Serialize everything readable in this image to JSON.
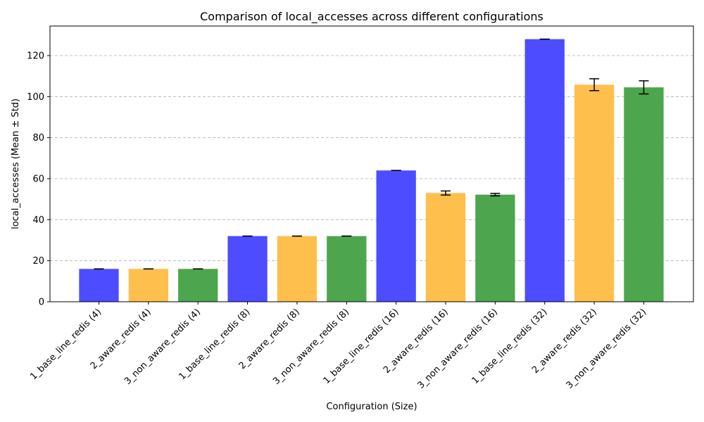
{
  "chart_data": {
    "type": "bar",
    "title": "Comparison of local_accesses across different configurations",
    "xlabel": "Configuration (Size)",
    "ylabel": "local_accesses (Mean ± Std)",
    "ylim": [
      0,
      134.4
    ],
    "yticks": [
      0,
      20,
      40,
      60,
      80,
      100,
      120
    ],
    "grid": "y-dashed",
    "categories": [
      "1_base_line_redis (4)",
      "2_aware_redis (4)",
      "3_non_aware_redis (4)",
      "1_base_line_redis (8)",
      "2_aware_redis (8)",
      "3_non_aware_redis (8)",
      "1_base_line_redis (16)",
      "2_aware_redis (16)",
      "3_non_aware_redis (16)",
      "1_base_line_redis (32)",
      "2_aware_redis (32)",
      "3_non_aware_redis (32)"
    ],
    "values": [
      16,
      16,
      16,
      32,
      32,
      32,
      64,
      53,
      52.2,
      128,
      105.8,
      104.5
    ],
    "errors": [
      0,
      0,
      0,
      0,
      0,
      0,
      0,
      1,
      0.6,
      0,
      2.9,
      3.2
    ],
    "colors": [
      "#4d4dff",
      "#ffbf4d",
      "#4da64d",
      "#4d4dff",
      "#ffbf4d",
      "#4da64d",
      "#4d4dff",
      "#ffbf4d",
      "#4da64d",
      "#4d4dff",
      "#ffbf4d",
      "#4da64d"
    ]
  }
}
